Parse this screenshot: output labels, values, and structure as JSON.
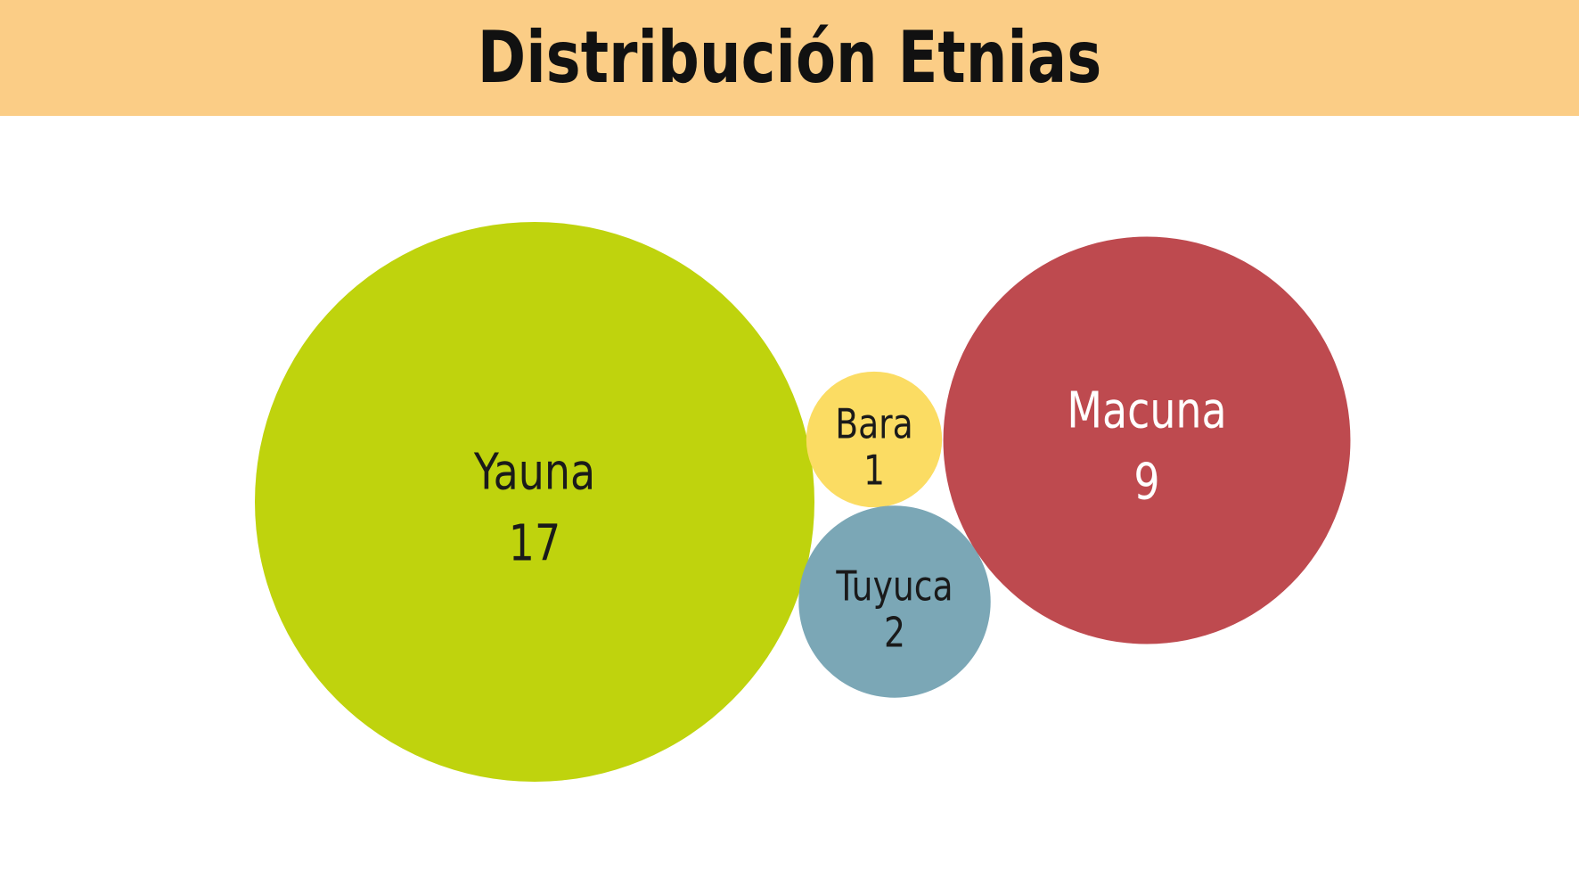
{
  "header": {
    "title": "Distribución Etnias",
    "background_color": "#fbcd86"
  },
  "chart_data": {
    "type": "bubble",
    "title": "Distribución Etnias",
    "series": [
      {
        "name": "Yauna",
        "value": 17,
        "color": "#bfd30d",
        "label_color": "#1a1a1a"
      },
      {
        "name": "Bara",
        "value": 1,
        "color": "#fbdc63",
        "label_color": "#1a1a1a"
      },
      {
        "name": "Tuyuca",
        "value": 2,
        "color": "#7ba7b6",
        "label_color": "#1a1a1a"
      },
      {
        "name": "Macuna",
        "value": 9,
        "color": "#be4a4f",
        "label_color": "#ffffff"
      }
    ]
  }
}
